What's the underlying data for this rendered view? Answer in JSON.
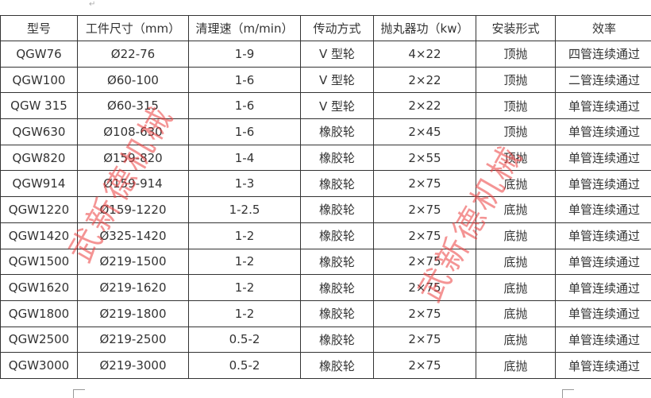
{
  "table": {
    "headers": [
      "型号",
      "工件尺寸（mm）",
      "清理速（m/min）",
      "传动方式",
      "抛丸器功（kw）",
      "安装形式",
      "效率"
    ],
    "rows": [
      [
        "QGW76",
        "Ø22-76",
        "1-9",
        "V 型轮",
        "4×22",
        "顶抛",
        "四管连续通过"
      ],
      [
        "QGW100",
        "Ø60-100",
        "1-6",
        "V 型轮",
        "2×22",
        "顶抛",
        "二管连续通过"
      ],
      [
        "QGW 315",
        "Ø60-315",
        "1-6",
        "V 型轮",
        "2×22",
        "顶抛",
        "单管连续通过"
      ],
      [
        "QGW630",
        "Ø108-630",
        "1-6",
        "橡胶轮",
        "2×45",
        "顶抛",
        "单管连续通过"
      ],
      [
        "QGW820",
        "Ø159-820",
        "1-4",
        "橡胶轮",
        "2×55",
        "顶抛",
        "单管连续通过"
      ],
      [
        "QGW914",
        "Ø159-914",
        "1-3",
        "橡胶轮",
        "2×75",
        "底抛",
        "单管连续通过"
      ],
      [
        "QGW1220",
        "Ø159-1220",
        "1-2.5",
        "橡胶轮",
        "2×75",
        "底抛",
        "单管连续通过"
      ],
      [
        "QGW1420",
        "Ø325-1420",
        "1-2",
        "橡胶轮",
        "2×75",
        "底抛",
        "单管连续通过"
      ],
      [
        "QGW1500",
        "Ø219-1500",
        "1-2",
        "橡胶轮",
        "2×75",
        "底抛",
        "单管连续通过"
      ],
      [
        "QGW1620",
        "Ø219-1620",
        "1-2",
        "橡胶轮",
        "2×75",
        "底抛",
        "单管连续通过"
      ],
      [
        "QGW1800",
        "Ø219-1800",
        "1-2",
        "橡胶轮",
        "2×75",
        "底抛",
        "单管连续通过"
      ],
      [
        "QGW2500",
        "Ø219-2500",
        "0.5-2",
        "橡胶轮",
        "2×75",
        "底抛",
        "单管连续通过"
      ],
      [
        "QGW3000",
        "Ø219-3000",
        "0.5-2",
        "橡胶轮",
        "2×75",
        "底抛",
        "单管连续通过"
      ]
    ]
  },
  "watermark": "武新德机械",
  "paragraph_mark": "↵"
}
